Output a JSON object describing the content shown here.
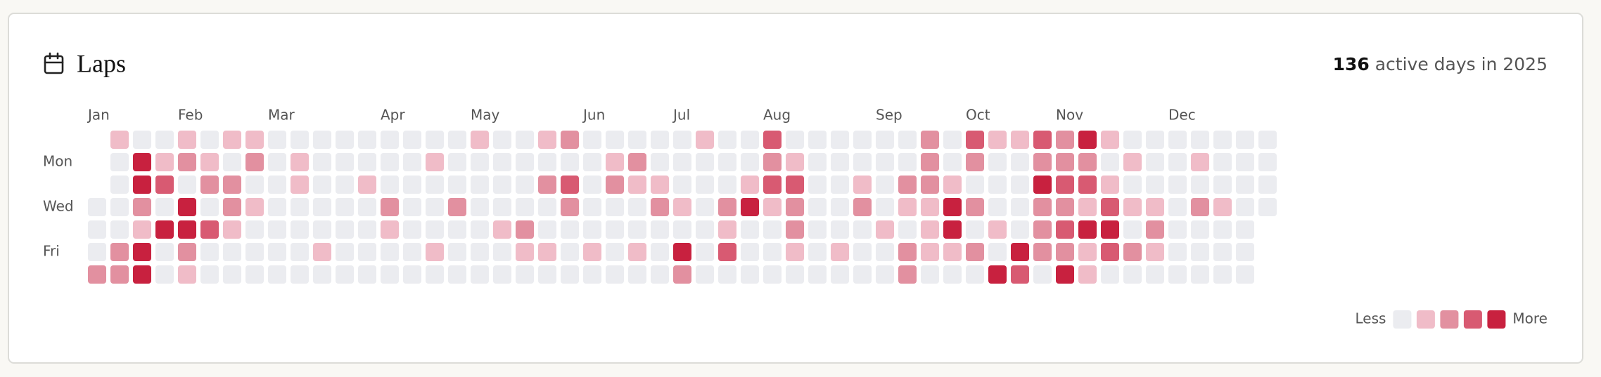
{
  "header": {
    "title": "Laps",
    "count": 136,
    "label": "active days in",
    "year": 2025
  },
  "heatmap": {
    "day_labels": [
      null,
      "Mon",
      null,
      "Wed",
      null,
      "Fri",
      null
    ],
    "months": [
      "Jan",
      "Feb",
      "Mar",
      "Apr",
      "May",
      "Jun",
      "Jul",
      "Aug",
      "Sep",
      "Oct",
      "Nov",
      "Dec"
    ],
    "colors": [
      "#ebecf0",
      "#f0bcc8",
      "#e290a0",
      "#d85a72",
      "#c8213f"
    ],
    "rows": [
      [
        null,
        1,
        0,
        0,
        1,
        0,
        1,
        1,
        0,
        0,
        0,
        0,
        0,
        0,
        0,
        0,
        0,
        1,
        0,
        0,
        1,
        2,
        0,
        0,
        0,
        0,
        0,
        1,
        0,
        0,
        3,
        0,
        0,
        0,
        0,
        0,
        0,
        2,
        0,
        3,
        1,
        1,
        3,
        2,
        4,
        1,
        0,
        0,
        0,
        0,
        0,
        0,
        0
      ],
      [
        null,
        0,
        4,
        1,
        2,
        1,
        0,
        2,
        0,
        1,
        0,
        0,
        0,
        0,
        0,
        1,
        0,
        0,
        0,
        0,
        0,
        0,
        0,
        1,
        2,
        0,
        0,
        0,
        0,
        0,
        2,
        1,
        0,
        0,
        0,
        0,
        0,
        2,
        0,
        2,
        0,
        0,
        2,
        2,
        2,
        0,
        1,
        0,
        0,
        1,
        0,
        0,
        0
      ],
      [
        null,
        0,
        4,
        3,
        0,
        2,
        2,
        0,
        0,
        1,
        0,
        0,
        1,
        0,
        0,
        0,
        0,
        0,
        0,
        0,
        2,
        3,
        0,
        2,
        1,
        1,
        0,
        0,
        0,
        1,
        3,
        3,
        0,
        0,
        1,
        0,
        2,
        2,
        1,
        0,
        0,
        0,
        4,
        3,
        3,
        1,
        0,
        0,
        0,
        0,
        0,
        0,
        0
      ],
      [
        0,
        0,
        2,
        0,
        4,
        0,
        2,
        1,
        0,
        0,
        0,
        0,
        0,
        2,
        0,
        0,
        2,
        0,
        0,
        0,
        0,
        2,
        0,
        0,
        0,
        2,
        1,
        0,
        2,
        4,
        1,
        2,
        0,
        0,
        2,
        0,
        1,
        1,
        4,
        2,
        0,
        0,
        2,
        2,
        1,
        3,
        1,
        1,
        0,
        2,
        1,
        0,
        0
      ],
      [
        0,
        0,
        1,
        4,
        4,
        3,
        1,
        0,
        0,
        0,
        0,
        0,
        0,
        1,
        0,
        0,
        0,
        0,
        1,
        2,
        0,
        0,
        0,
        0,
        0,
        0,
        0,
        0,
        1,
        0,
        0,
        2,
        0,
        0,
        0,
        1,
        0,
        1,
        4,
        0,
        1,
        0,
        2,
        3,
        4,
        4,
        0,
        2,
        0,
        0,
        0,
        0,
        null
      ],
      [
        0,
        2,
        4,
        0,
        2,
        0,
        0,
        0,
        0,
        0,
        1,
        0,
        0,
        0,
        0,
        1,
        0,
        0,
        0,
        1,
        1,
        0,
        1,
        0,
        1,
        0,
        4,
        0,
        3,
        0,
        0,
        1,
        0,
        1,
        0,
        0,
        2,
        1,
        1,
        2,
        0,
        4,
        2,
        2,
        1,
        3,
        2,
        1,
        0,
        0,
        0,
        0,
        null
      ],
      [
        2,
        2,
        4,
        0,
        1,
        0,
        0,
        0,
        0,
        0,
        0,
        0,
        0,
        0,
        0,
        0,
        0,
        0,
        0,
        0,
        0,
        0,
        0,
        0,
        0,
        0,
        2,
        0,
        0,
        0,
        0,
        0,
        0,
        0,
        0,
        0,
        2,
        0,
        0,
        0,
        4,
        3,
        0,
        4,
        1,
        0,
        0,
        0,
        0,
        0,
        0,
        0,
        null
      ]
    ],
    "legend": {
      "less": "Less",
      "more": "More",
      "levels": [
        0,
        1,
        2,
        3,
        4
      ]
    }
  }
}
